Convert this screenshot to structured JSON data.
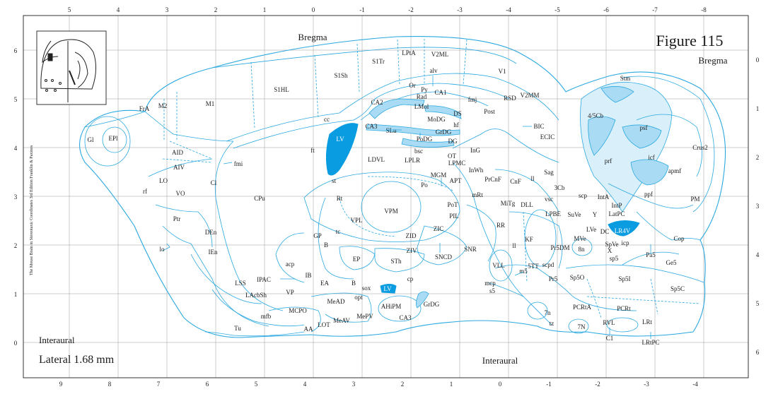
{
  "figure": {
    "title": "Figure 115",
    "lateral": "Lateral 1.68 mm",
    "bregma_top": "Bregma",
    "bregma_right": "Bregma",
    "interaural_left": "Interaural",
    "interaural_bottom": "Interaural",
    "credit": "The Mouse Brain in Stereotaxic Coordinates 3rd Edition Franklin & Paxinos"
  },
  "axes": {
    "top": [
      "5",
      "4",
      "3",
      "2",
      "1",
      "0",
      "-1",
      "-2",
      "-3",
      "-4",
      "-5",
      "-6",
      "-7",
      "-8"
    ],
    "bottom": [
      "9",
      "8",
      "7",
      "6",
      "5",
      "4",
      "3",
      "2",
      "1",
      "0",
      "-1",
      "-2",
      "-3",
      "-4"
    ],
    "left": [
      "6",
      "5",
      "4",
      "3",
      "2",
      "1",
      "0"
    ],
    "right": [
      "0",
      "1",
      "2",
      "3",
      "4",
      "5",
      "6"
    ]
  },
  "regions": {
    "Bregma_c": "Bregma",
    "S1Sh": "S1Sh",
    "S1Tr": "S1Tr",
    "LPtA": "LPtA",
    "V2ML": "V2ML",
    "V1": "V1",
    "S1HL": "S1HL",
    "M1": "M1",
    "M2": "M2",
    "FrA": "FrA",
    "Gl": "Gl",
    "EPl": "EPl",
    "cc": "cc",
    "alv": "alv",
    "Or": "Or",
    "Py": "Py",
    "CA1": "CA1",
    "Rad": "Rad",
    "fmj": "fmj",
    "RSD": "RSD",
    "V2MM": "V2MM",
    "Stm": "Stm",
    "CA2": "CA2",
    "LMol": "LMol",
    "MoDG": "MoDG",
    "DS": "DS",
    "Post": "Post",
    "CA3": "CA3",
    "SLu": "SLu",
    "GrDG": "GrDG",
    "hf": "hf",
    "BIC": "BIC",
    "ECIC": "ECIC",
    "LV": "LV",
    "PoDG": "PoDG",
    "DG": "DG",
    "bsc": "bsc",
    "ft": "ft",
    "InG": "InG",
    "AID": "AID",
    "fmi": "fmi",
    "LDVL": "LDVL",
    "LPLR": "LPLR",
    "LPMC": "LPMC",
    "OT": "OT",
    "AIV": "AIV",
    "InWh": "InWh",
    "Sag": "Sag",
    "MGM": "MGM",
    "LO": "LO",
    "Cl": "Cl",
    "st": "st",
    "Po": "Po",
    "APT": "APT",
    "PrCnF": "PrCnF",
    "CnF": "CnF",
    "ll_a": "ll",
    "rf": "rf",
    "VO": "VO",
    "CPu": "CPu",
    "Rt": "Rt",
    "mRt": "mRt",
    "3Cb": "3Cb",
    "VPM": "VPM",
    "PoT": "PoT",
    "MiTg": "MiTg",
    "DLL": "DLL",
    "PIL": "PIL",
    "LPBE": "LPBE",
    "Ptr": "Ptr",
    "VPL": "VPL",
    "RR": "RR",
    "DEn": "DEn",
    "ZID": "ZID",
    "ZIC": "ZIC",
    "GP": "GP",
    "tc": "tc",
    "KF": "KF",
    "B": "B",
    "ll_b": "ll",
    "Pr5DM": "Pr5DM",
    "lo": "lo",
    "IEn": "IEn",
    "ZIV": "ZIV",
    "SNR": "SNR",
    "SNCD": "SNCD",
    "EP": "EP",
    "STh": "STh",
    "acp": "acp",
    "VLL": "VLL",
    "5TT": "5TT",
    "m5": "m5",
    "LSS": "LSS",
    "IPAC": "IPAC",
    "IB": "IB",
    "EA": "EA",
    "cp": "cp",
    "mcp": "mcp",
    "Pr5": "Pr5",
    "Sp5O": "Sp5O",
    "Sp5I": "Sp5I",
    "LAcbSh": "LAcbSh",
    "VP": "VP",
    "B2": "B",
    "sox": "sox",
    "LV2": "LV",
    "s5": "s5",
    "opt": "opt",
    "MeAD": "MeAD",
    "AHiPM": "AHiPM",
    "GrDG2": "GrDG",
    "MCPO": "MCPO",
    "mfb": "mfb",
    "MePV": "MePV",
    "MeAV": "MeAV",
    "AA": "AA",
    "LOT": "LOT",
    "Tu": "Tu",
    "7n": "7n",
    "PCRtA": "PCRtA",
    "PCRt": "PCRt",
    "tz": "tz",
    "7N": "7N",
    "RVL": "RVL",
    "LRt": "LRt",
    "C1": "C1",
    "LRtPC": "LRtPC",
    "Sp5C": "Sp5C",
    "Ge5": "Ge5",
    "Pa5": "Pa5",
    "sp5": "sp5",
    "X": "X",
    "SpVe": "SpVe",
    "8n": "8n",
    "MVe": "MVe",
    "LVe": "LVe",
    "icp": "icp",
    "Cop": "Cop",
    "LR4V": "LR4V",
    "DC": "DC",
    "Y": "Y",
    "LatPC": "LatPC",
    "IntP": "IntP",
    "IntA": "IntA",
    "scp": "scp",
    "vsc": "vsc",
    "SuVe": "SuVe",
    "scpd": "scpd",
    "PM": "PM",
    "ppf": "ppf",
    "prf": "prf",
    "icf": "icf",
    "apmf": "apmf",
    "Crus2": "Crus2",
    "psf": "psf",
    "cb45": "4/5Cb",
    "scp2": "scp"
  }
}
